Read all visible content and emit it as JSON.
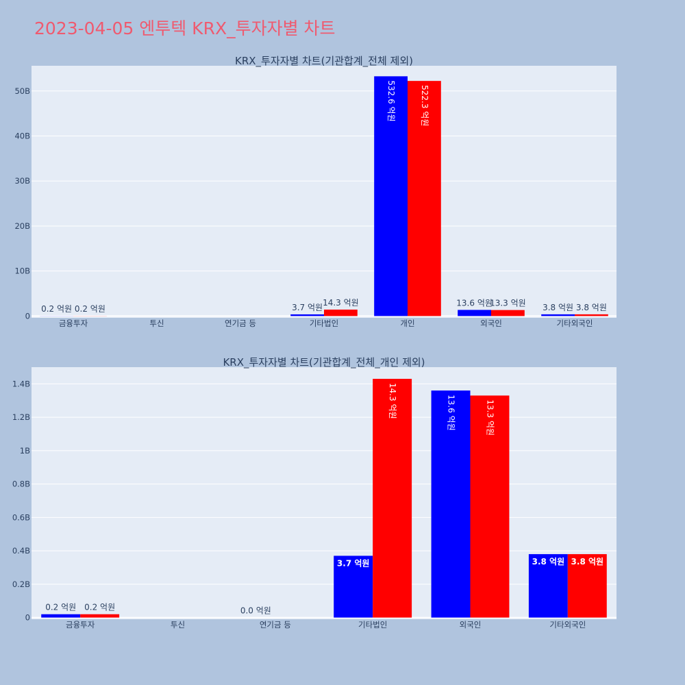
{
  "page_title": "2023-04-05 엔투텍 KRX_투자자별 차트",
  "colors": {
    "series_a": "#0000ff",
    "series_b": "#ff0000",
    "plot_bg": "#e5ecf6",
    "page_bg": "#b0c4de",
    "title": "#ef5a6f"
  },
  "chart_data": [
    {
      "type": "bar",
      "title": "KRX_투자자별 차트(기관합계_전체 제외)",
      "categories": [
        "금융투자",
        "투신",
        "연기금 등",
        "기타법인",
        "개인",
        "외국인",
        "기타외국인"
      ],
      "series": [
        {
          "values": [
            0.2,
            null,
            null,
            3.7,
            532.6,
            13.6,
            3.8
          ],
          "color": "#0000ff"
        },
        {
          "values": [
            0.2,
            null,
            null,
            14.3,
            522.3,
            13.3,
            3.8
          ],
          "color": "#ff0000"
        }
      ],
      "series_labels": [
        [
          "0.2 억원",
          "",
          "",
          "3.7 억원",
          "532.6 억원",
          "13.6 억원",
          "3.8 억원"
        ],
        [
          "0.2 억원",
          "",
          "",
          "14.3 억원",
          "522.3 억원",
          "13.3 억원",
          "3.8 억원"
        ]
      ],
      "yticks": [
        "0",
        "10B",
        "20B",
        "30B",
        "40B",
        "50B"
      ],
      "ytick_values": [
        0,
        100,
        200,
        300,
        400,
        500
      ],
      "ylim": [
        -4,
        556
      ],
      "grid": true
    },
    {
      "type": "bar",
      "title": "KRX_투자자별 차트(기관합계_전체_개인 제외)",
      "categories": [
        "금융투자",
        "투신",
        "연기금 등",
        "기타법인",
        "외국인",
        "기타외국인"
      ],
      "series": [
        {
          "values": [
            0.2,
            null,
            0.0,
            3.7,
            13.6,
            3.8
          ],
          "color": "#0000ff"
        },
        {
          "values": [
            0.2,
            null,
            null,
            14.3,
            13.3,
            3.8
          ],
          "color": "#ff0000"
        }
      ],
      "series_labels": [
        [
          "0.2 억원",
          "",
          "0.0 억원",
          "3.7 억원",
          "13.6 억원",
          "3.8 억원"
        ],
        [
          "0.2 억원",
          "",
          "",
          "14.3 억원",
          "13.3 억원",
          "3.8 억원"
        ]
      ],
      "yticks": [
        "0",
        "0.2B",
        "0.4B",
        "0.6B",
        "0.8B",
        "1B",
        "1.2B",
        "1.4B"
      ],
      "ytick_values": [
        0,
        2,
        4,
        6,
        8,
        10,
        12,
        14
      ],
      "ylim": [
        -0.1,
        15.0
      ],
      "grid": true
    }
  ]
}
